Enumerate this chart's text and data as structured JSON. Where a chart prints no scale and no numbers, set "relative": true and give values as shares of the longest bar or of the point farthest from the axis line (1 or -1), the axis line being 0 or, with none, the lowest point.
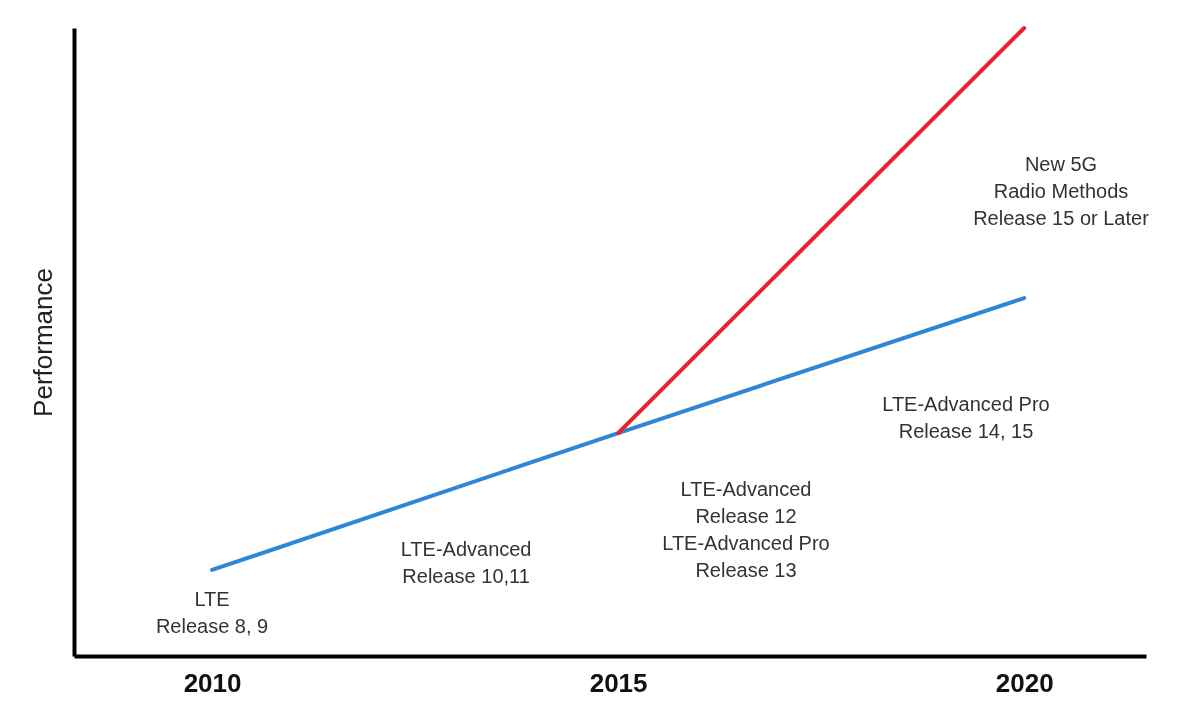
{
  "chart_data": {
    "type": "line",
    "relative": true,
    "ylabel": "Performance",
    "xlim": [
      2008.3,
      2021.5
    ],
    "xticks": [
      2010,
      2015,
      2020
    ],
    "grid": false,
    "legend": false,
    "marker": "none",
    "line_style": "solid",
    "series": [
      {
        "color": "#2e86d4",
        "x": [
          2010,
          2015,
          2020
        ],
        "values": [
          0.137,
          0.355,
          0.57
        ]
      },
      {
        "color": "#e8232b",
        "x": [
          2015,
          2020
        ],
        "values": [
          0.355,
          1
        ]
      }
    ],
    "annotations": [
      {
        "text": "LTE\nRelease 8, 9",
        "x": 2010,
        "y": 0.137
      },
      {
        "text": "LTE-Advanced\nRelease 10,11",
        "x": 2012.5,
        "y": 0.246
      },
      "LTE-Advanced\nRelease 12\nLTE-Advanced Pro\nRelease 13",
      "LTE-Advanced Pro\nRelease 14, 15",
      "New 5G\nRadio Methods\nRelease 15 or Later"
    ]
  }
}
